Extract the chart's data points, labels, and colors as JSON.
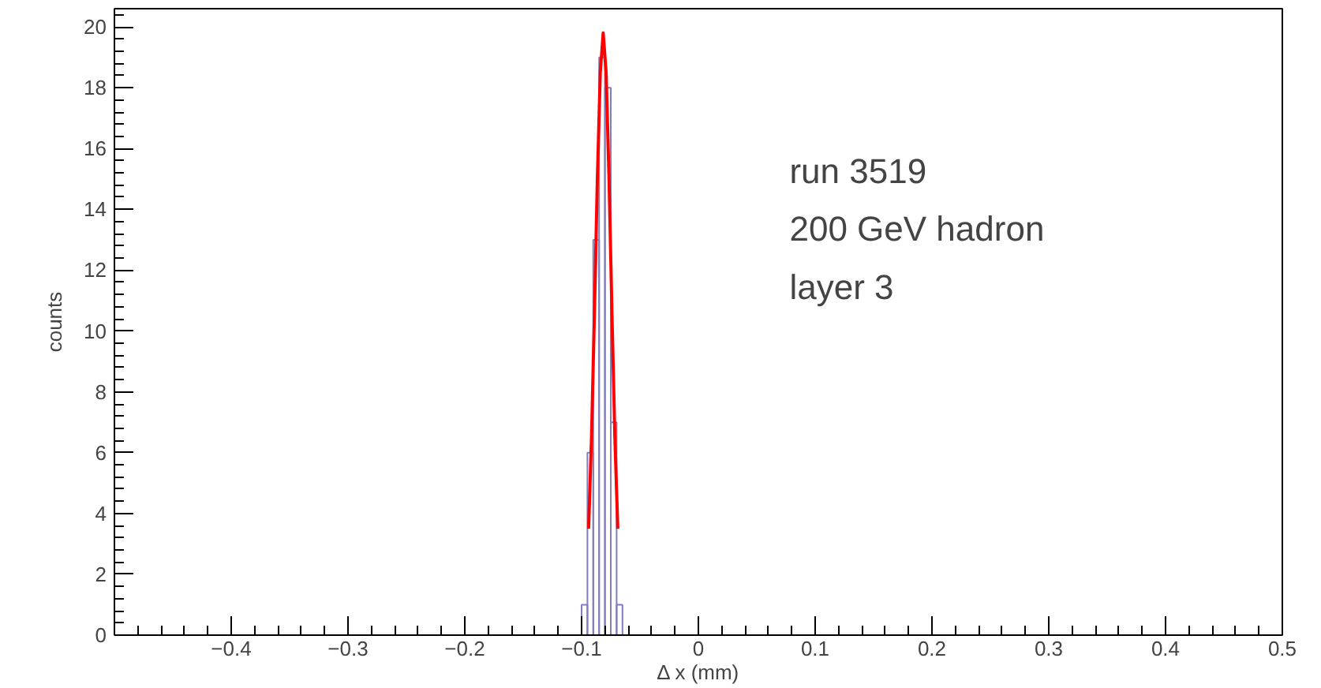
{
  "chart_data": {
    "type": "histogram",
    "xlabel": "Δ x (mm)",
    "ylabel": "counts",
    "bins": [
      -0.1,
      -0.095,
      -0.09,
      -0.085,
      -0.08,
      -0.075,
      -0.07,
      -0.065
    ],
    "series": [
      {
        "color": "#7f7fbf",
        "values": [
          1,
          6,
          13,
          19,
          18,
          7,
          1
        ]
      },
      {
        "type": "line",
        "color": "#ff0000",
        "x": [
          -0.094,
          -0.0915,
          -0.089,
          -0.0865,
          -0.084,
          -0.0815,
          -0.079,
          -0.0765,
          -0.074,
          -0.0715,
          -0.069
        ],
        "values": [
          3.5,
          6.5,
          10.6,
          15.0,
          18.5,
          19.8,
          18.5,
          15.0,
          10.6,
          6.5,
          3.5
        ]
      }
    ],
    "xlim": [
      -0.5,
      0.5
    ],
    "xticks": [
      -0.4,
      -0.3,
      -0.2,
      -0.1,
      0,
      0.1,
      0.2,
      0.3,
      0.4,
      0.5
    ],
    "ylim": [
      0,
      20.6
    ],
    "yticks": [
      0,
      2,
      4,
      6,
      8,
      10,
      12,
      14,
      16,
      18,
      20
    ],
    "annotations": [
      "run 3519",
      "200 GeV hadron",
      "layer 3"
    ],
    "grid": false
  }
}
